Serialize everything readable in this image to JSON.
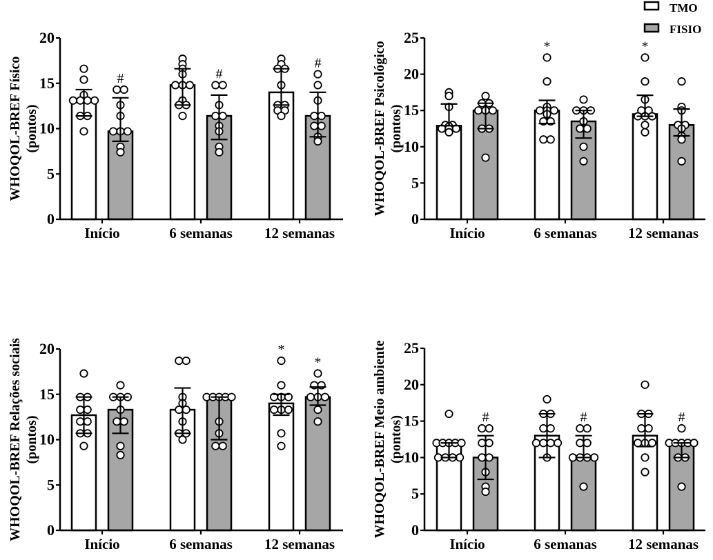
{
  "legend": {
    "position": "top-right",
    "entries": [
      {
        "label": "TMO",
        "color": "#ffffff"
      },
      {
        "label": "FISIO",
        "color": "#a6a6a6"
      }
    ]
  },
  "colors": {
    "tmo": "#ffffff",
    "fisio": "#a6a6a6",
    "stroke": "#000000"
  },
  "chart_data": [
    {
      "type": "bar",
      "title": "",
      "ylabel": "WHOQOL-BREF Físico",
      "ylabel_units": "(pontos)",
      "xlabel": "",
      "ylim": [
        0,
        20
      ],
      "yticks": [
        "0",
        "5",
        "10",
        "15",
        "20"
      ],
      "categories": [
        "Início",
        "6 semanas",
        "12 semanas"
      ],
      "grid": false,
      "series": [
        {
          "name": "TMO",
          "values": [
            13.1,
            14.8,
            14.0
          ],
          "err_low": [
            11.4,
            12.6,
            12.6
          ],
          "err_high": [
            14.3,
            16.6,
            16.6
          ],
          "annotations": [
            "",
            "",
            ""
          ],
          "points": [
            [
              16.6,
              15.4,
              13.7,
              13.1,
              13.1,
              13.1,
              13.1,
              11.4,
              11.4,
              9.7
            ],
            [
              17.7,
              17.1,
              16.6,
              16.0,
              14.8,
              14.8,
              14.8,
              13.1,
              12.6,
              12.6,
              11.4
            ],
            [
              17.7,
              17.1,
              16.6,
              16.6,
              14.8,
              12.6,
              12.6,
              12.0,
              12.0,
              11.4
            ]
          ]
        },
        {
          "name": "FISIO",
          "values": [
            9.7,
            11.4,
            11.4
          ],
          "err_low": [
            8.6,
            8.8,
            9.1
          ],
          "err_high": [
            13.4,
            13.7,
            14.0
          ],
          "annotations": [
            "#",
            "#",
            "#"
          ],
          "points": [
            [
              14.3,
              14.3,
              12.6,
              11.4,
              9.7,
              9.7,
              9.7,
              8.0,
              7.4
            ],
            [
              14.8,
              14.8,
              12.6,
              11.4,
              11.4,
              10.3,
              9.7,
              8.0,
              7.4
            ],
            [
              16.0,
              14.8,
              13.1,
              11.4,
              11.4,
              10.3,
              10.3,
              9.1,
              8.6
            ]
          ]
        }
      ]
    },
    {
      "type": "bar",
      "title": "",
      "ylabel": "WHOQOL-BREF Psicológico",
      "ylabel_units": "(pontos)",
      "xlabel": "",
      "ylim": [
        0,
        25
      ],
      "yticks": [
        "0",
        "5",
        "10",
        "15",
        "20",
        "25"
      ],
      "categories": [
        "Início",
        "6 semanas",
        "12 semanas"
      ],
      "grid": false,
      "series": [
        {
          "name": "TMO",
          "values": [
            12.9,
            15.0,
            14.5
          ],
          "err_low": [
            12.9,
            13.2,
            14.2
          ],
          "err_high": [
            15.9,
            16.4,
            17.1
          ],
          "annotations": [
            "",
            "*",
            "*"
          ],
          "points": [
            [
              17.5,
              17.0,
              15.5,
              13.0,
              13.0,
              12.8,
              12.5,
              12.5,
              12.5,
              12.0
            ],
            [
              22.3,
              19.0,
              15.5,
              15.0,
              15.0,
              15.0,
              14.5,
              13.5,
              13.5,
              11.0,
              11.0
            ],
            [
              22.3,
              19.0,
              16.5,
              15.0,
              15.0,
              14.2,
              14.2,
              14.2,
              13.0,
              12.0
            ]
          ]
        },
        {
          "name": "FISIO",
          "values": [
            15.0,
            13.5,
            13.0
          ],
          "err_low": [
            12.5,
            11.2,
            11.5
          ],
          "err_high": [
            16.0,
            15.0,
            15.2
          ],
          "annotations": [
            "",
            "",
            ""
          ],
          "points": [
            [
              17.0,
              16.0,
              16.0,
              15.0,
              15.0,
              15.0,
              12.5,
              12.5,
              8.5
            ],
            [
              16.5,
              15.0,
              15.0,
              15.0,
              13.5,
              12.5,
              12.5,
              10.0,
              8.0
            ],
            [
              19.0,
              15.5,
              15.0,
              13.0,
              13.0,
              12.5,
              11.5,
              11.0,
              8.0
            ]
          ]
        }
      ]
    },
    {
      "type": "bar",
      "title": "",
      "ylabel": "WHOQOL-BREF Relações sociais",
      "ylabel_units": "(pontos)",
      "xlabel": "",
      "ylim": [
        0,
        20
      ],
      "yticks": [
        "0",
        "5",
        "10",
        "15",
        "20"
      ],
      "categories": [
        "Início",
        "6 semanas",
        "12 semanas"
      ],
      "grid": false,
      "series": [
        {
          "name": "TMO",
          "values": [
            12.7,
            13.3,
            14.0
          ],
          "err_low": [
            10.7,
            10.7,
            12.7
          ],
          "err_high": [
            14.7,
            15.7,
            15.0
          ],
          "annotations": [
            "",
            "",
            "*"
          ],
          "points": [
            [
              17.3,
              14.7,
              14.7,
              13.3,
              13.3,
              12.0,
              12.0,
              10.7,
              10.7,
              9.3
            ],
            [
              18.7,
              18.7,
              14.7,
              14.0,
              13.3,
              13.3,
              12.0,
              10.7,
              10.7,
              10.0
            ],
            [
              18.7,
              16.0,
              14.7,
              14.7,
              14.7,
              13.3,
              13.3,
              13.3,
              10.7,
              9.3
            ]
          ]
        },
        {
          "name": "FISIO",
          "values": [
            13.3,
            14.7,
            14.7
          ],
          "err_low": [
            10.7,
            10.0,
            13.8
          ],
          "err_high": [
            14.7,
            14.7,
            15.8
          ],
          "annotations": [
            "",
            "",
            "*"
          ],
          "points": [
            [
              16.0,
              14.7,
              14.7,
              14.7,
              13.3,
              12.0,
              12.0,
              9.3,
              8.3
            ],
            [
              14.7,
              14.7,
              14.7,
              14.7,
              14.7,
              12.0,
              10.7,
              9.3,
              9.3
            ],
            [
              17.3,
              16.0,
              16.0,
              14.7,
              14.7,
              14.7,
              13.3,
              12.0
            ]
          ]
        }
      ]
    },
    {
      "type": "bar",
      "title": "",
      "ylabel": "WHOQOL-BREF Meio ambiente",
      "ylabel_units": "(pontos)",
      "xlabel": "",
      "ylim": [
        0,
        25
      ],
      "yticks": [
        "0",
        "5",
        "10",
        "15",
        "20",
        "25"
      ],
      "categories": [
        "Início",
        "6 semanas",
        "12 semanas"
      ],
      "grid": false,
      "series": [
        {
          "name": "TMO",
          "values": [
            12.0,
            13.0,
            13.0
          ],
          "err_low": [
            10.0,
            10.0,
            11.5
          ],
          "err_high": [
            12.0,
            16.0,
            16.0
          ],
          "annotations": [
            "",
            "",
            ""
          ],
          "points": [
            [
              16.0,
              12.0,
              12.0,
              12.0,
              12.0,
              12.0,
              10.0,
              10.0,
              10.0,
              10.0
            ],
            [
              18.0,
              16.0,
              16.0,
              14.0,
              14.0,
              12.0,
              12.0,
              12.0,
              12.0,
              10.0
            ],
            [
              20.0,
              16.0,
              16.0,
              14.0,
              14.0,
              12.0,
              12.0,
              12.0,
              10.0,
              8.0
            ]
          ]
        },
        {
          "name": "FISIO",
          "values": [
            10.0,
            10.0,
            12.0
          ],
          "err_low": [
            7.0,
            10.0,
            10.0
          ],
          "err_high": [
            13.0,
            13.0,
            12.0
          ],
          "annotations": [
            "#",
            "#",
            "#"
          ],
          "points": [
            [
              14.0,
              14.0,
              12.0,
              12.0,
              10.0,
              10.0,
              8.0,
              6.0,
              5.3
            ],
            [
              14.0,
              14.0,
              12.0,
              12.0,
              10.0,
              10.0,
              10.0,
              10.0,
              6.0
            ],
            [
              14.0,
              12.0,
              12.0,
              12.0,
              12.0,
              12.0,
              10.0,
              10.0,
              6.0
            ]
          ]
        }
      ]
    }
  ]
}
